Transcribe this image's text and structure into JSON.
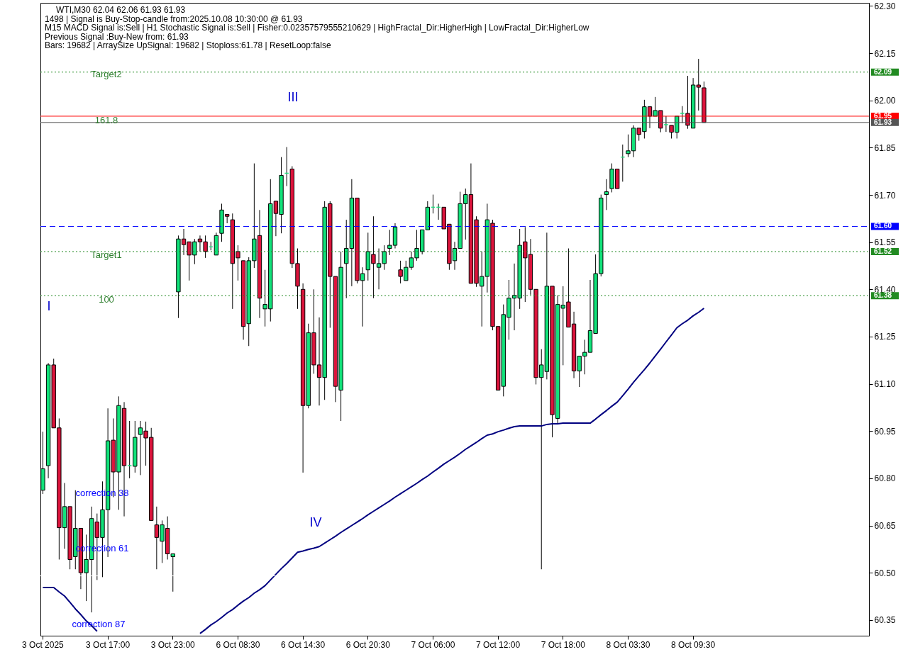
{
  "chart_data": {
    "type": "candlestick",
    "title": "WTI,M30  62.04 62.06 61.93 61.93",
    "categories": [
      "3 Oct 2025",
      null,
      null,
      null,
      null,
      null,
      null,
      null,
      null,
      null,
      null,
      null,
      "3 Oct 17:00",
      null,
      null,
      null,
      null,
      null,
      null,
      null,
      null,
      null,
      null,
      null,
      "3 Oct 23:00",
      null,
      null,
      null,
      null,
      null,
      null,
      null,
      null,
      null,
      null,
      null,
      "6 Oct 08:30",
      null,
      null,
      null,
      null,
      null,
      null,
      null,
      null,
      null,
      null,
      null,
      "6 Oct 14:30",
      null,
      null,
      null,
      null,
      null,
      null,
      null,
      null,
      null,
      null,
      null,
      "6 Oct 20:30",
      null,
      null,
      null,
      null,
      null,
      null,
      null,
      null,
      null,
      null,
      null,
      "7 Oct 06:00",
      null,
      null,
      null,
      null,
      null,
      null,
      null,
      null,
      null,
      null,
      null,
      "7 Oct 12:00",
      null,
      null,
      null,
      null,
      null,
      null,
      null,
      null,
      null,
      null,
      null,
      "7 Oct 18:00",
      null,
      null,
      null,
      null,
      null,
      null,
      null,
      null,
      null,
      null,
      null,
      "8 Oct 03:30",
      null,
      null,
      null,
      null,
      null,
      null,
      null,
      null,
      null,
      null,
      null,
      "8 Oct 09:30",
      null,
      null,
      null,
      null,
      null,
      null,
      null,
      null,
      null,
      null,
      null,
      null,
      null,
      null,
      null,
      null,
      null,
      null,
      null,
      null,
      null,
      null,
      null,
      null,
      null,
      null,
      null,
      null,
      null,
      null,
      null,
      null
    ],
    "ohlc": [
      [
        60.762,
        60.948,
        60.75,
        60.83
      ],
      [
        60.84,
        61.166,
        60.8,
        61.16
      ],
      [
        61.16,
        61.18,
        60.96,
        60.96
      ],
      [
        60.96,
        60.99,
        60.542,
        60.643
      ],
      [
        60.643,
        60.785,
        60.576,
        60.71
      ],
      [
        60.71,
        60.71,
        60.511,
        60.542
      ],
      [
        60.551,
        60.762,
        60.511,
        60.641
      ],
      [
        60.641,
        60.641,
        60.448,
        60.5
      ],
      [
        60.5,
        60.621,
        60.41,
        60.542
      ],
      [
        60.542,
        60.71,
        60.374,
        60.672
      ],
      [
        60.661,
        60.688,
        60.477,
        60.612
      ],
      [
        60.612,
        60.79,
        60.486,
        60.7
      ],
      [
        60.7,
        61.022,
        60.55,
        60.919
      ],
      [
        60.921,
        60.99,
        60.74,
        60.82
      ],
      [
        60.82,
        61.06,
        60.7,
        61.031
      ],
      [
        61.022,
        61.042,
        60.679,
        60.84
      ],
      [
        60.84,
        60.982,
        60.8,
        60.84
      ],
      [
        60.838,
        60.982,
        60.818,
        60.93
      ],
      [
        60.939,
        60.982,
        60.81,
        60.96
      ],
      [
        60.95,
        60.98,
        60.84,
        60.928
      ],
      [
        60.93,
        60.96,
        60.666,
        60.666
      ],
      [
        60.652,
        60.71,
        60.511,
        60.612
      ],
      [
        60.6,
        60.666,
        60.531,
        60.652
      ],
      [
        60.641,
        60.679,
        60.542,
        60.56
      ],
      [
        60.551,
        60.56,
        60.44,
        60.56
      ],
      [
        61.392,
        61.571,
        61.309,
        61.56
      ],
      [
        61.56,
        61.592,
        61.509,
        61.542
      ],
      [
        61.551,
        61.551,
        61.428,
        61.509
      ],
      [
        61.509,
        61.56,
        61.48,
        61.551
      ],
      [
        61.56,
        61.571,
        61.52,
        61.551
      ],
      [
        61.551,
        61.571,
        61.5,
        61.52
      ],
      [
        61.535,
        61.551,
        61.524,
        61.535
      ],
      [
        61.509,
        61.58,
        61.509,
        61.571
      ],
      [
        61.578,
        61.672,
        61.551,
        61.652
      ],
      [
        61.638,
        61.638,
        61.61,
        61.632
      ],
      [
        61.621,
        61.641,
        61.338,
        61.482
      ],
      [
        61.52,
        61.54,
        61.428,
        61.5
      ],
      [
        61.491,
        61.491,
        61.24,
        61.282
      ],
      [
        61.291,
        61.502,
        61.22,
        61.491
      ],
      [
        61.491,
        61.8,
        61.468,
        61.56
      ],
      [
        61.571,
        61.652,
        61.309,
        61.372
      ],
      [
        61.338,
        61.462,
        61.282,
        61.352
      ],
      [
        61.338,
        61.75,
        61.298,
        61.672
      ],
      [
        61.68,
        61.68,
        61.569,
        61.641
      ],
      [
        61.638,
        61.82,
        61.578,
        61.762
      ],
      [
        61.769,
        61.852,
        61.728,
        61.769
      ],
      [
        61.782,
        61.791,
        61.468,
        61.482
      ],
      [
        61.482,
        61.53,
        61.338,
        61.41
      ],
      [
        61.4,
        61.419,
        60.818,
        61.031
      ],
      [
        61.031,
        61.291,
        61.022,
        61.262
      ],
      [
        61.262,
        61.4,
        61.132,
        61.16
      ],
      [
        61.16,
        61.311,
        61.031,
        61.12
      ],
      [
        61.12,
        61.68,
        61.049,
        61.661
      ],
      [
        61.672,
        61.68,
        61.278,
        61.441
      ],
      [
        61.441,
        61.441,
        61.042,
        61.092
      ],
      [
        61.08,
        61.52,
        60.982,
        61.47
      ],
      [
        61.482,
        61.621,
        61.372,
        61.53
      ],
      [
        61.53,
        61.75,
        61.41,
        61.69
      ],
      [
        61.69,
        61.69,
        61.419,
        61.428
      ],
      [
        61.428,
        61.47,
        61.282,
        61.45
      ],
      [
        61.462,
        61.58,
        61.428,
        61.52
      ],
      [
        61.511,
        61.632,
        61.372,
        61.482
      ],
      [
        61.47,
        61.53,
        61.4,
        61.482
      ],
      [
        61.482,
        61.54,
        61.462,
        61.52
      ],
      [
        61.53,
        61.589,
        61.509,
        61.54
      ],
      [
        61.54,
        61.61,
        61.53,
        61.598
      ],
      [
        61.462,
        61.491,
        61.419,
        61.441
      ],
      [
        61.428,
        61.491,
        61.428,
        61.47
      ],
      [
        61.47,
        61.52,
        61.462,
        61.5
      ],
      [
        61.5,
        61.589,
        61.491,
        61.53
      ],
      [
        61.52,
        61.589,
        61.511,
        61.589
      ],
      [
        61.589,
        61.68,
        61.589,
        61.661
      ],
      [
        61.661,
        61.701,
        61.641,
        61.661
      ],
      [
        61.661,
        61.672,
        61.621,
        61.661
      ],
      [
        61.661,
        61.661,
        61.592,
        61.592
      ],
      [
        61.607,
        61.607,
        61.462,
        61.482
      ],
      [
        61.491,
        61.551,
        61.462,
        61.53
      ],
      [
        61.53,
        61.71,
        61.53,
        61.672
      ],
      [
        61.672,
        61.72,
        61.558,
        61.701
      ],
      [
        61.701,
        61.8,
        61.419,
        61.419
      ],
      [
        61.621,
        61.632,
        61.408,
        61.419
      ],
      [
        61.41,
        61.52,
        61.282,
        61.441
      ],
      [
        61.441,
        61.672,
        61.39,
        61.621
      ],
      [
        61.61,
        61.621,
        61.27,
        61.282
      ],
      [
        61.282,
        61.282,
        61.08,
        61.08
      ],
      [
        61.092,
        61.352,
        61.06,
        61.32
      ],
      [
        61.311,
        61.43,
        61.24,
        61.372
      ],
      [
        61.372,
        61.482,
        61.27,
        61.381
      ],
      [
        61.372,
        61.592,
        61.338,
        61.54
      ],
      [
        61.551,
        61.598,
        61.36,
        61.5
      ],
      [
        61.511,
        61.56,
        61.383,
        61.4
      ],
      [
        61.4,
        61.4,
        61.098,
        61.12
      ],
      [
        61.12,
        61.21,
        60.511,
        61.16
      ],
      [
        61.139,
        61.58,
        61.114,
        61.41
      ],
      [
        61.41,
        61.41,
        60.93,
        61.002
      ],
      [
        60.99,
        61.381,
        60.975,
        61.352
      ],
      [
        61.34,
        61.41,
        61.159,
        61.35
      ],
      [
        61.36,
        61.53,
        61.28,
        61.28
      ],
      [
        61.29,
        61.329,
        61.118,
        61.141
      ],
      [
        61.141,
        61.188,
        61.09,
        61.188
      ],
      [
        61.188,
        61.24,
        61.13,
        61.2
      ],
      [
        61.2,
        61.43,
        61.2,
        61.269
      ],
      [
        61.26,
        61.511,
        61.26,
        61.45
      ],
      [
        61.45,
        61.701,
        61.441,
        61.69
      ],
      [
        61.701,
        61.75,
        61.652,
        61.71
      ],
      [
        61.72,
        61.8,
        61.708,
        61.782
      ],
      [
        61.782,
        61.782,
        61.72,
        61.72
      ],
      [
        61.82,
        61.86,
        61.742,
        61.82
      ],
      [
        61.831,
        61.892,
        61.82,
        61.84
      ],
      [
        61.84,
        61.921,
        61.82,
        61.912
      ],
      [
        61.912,
        61.912,
        61.872,
        61.892
      ],
      [
        61.901,
        62.002,
        61.879,
        61.98
      ],
      [
        61.98,
        61.98,
        61.912,
        61.95
      ],
      [
        61.95,
        62.011,
        61.95,
        61.968
      ],
      [
        61.968,
        61.968,
        61.899,
        61.912
      ],
      [
        61.923,
        61.95,
        61.9,
        61.923
      ],
      [
        61.921,
        61.921,
        61.879,
        61.899
      ],
      [
        61.899,
        61.95,
        61.879,
        61.95
      ],
      [
        61.959,
        61.982,
        61.928,
        61.959
      ],
      [
        61.959,
        62.078,
        61.91,
        61.921
      ],
      [
        61.912,
        62.071,
        61.912,
        62.049
      ],
      [
        62.049,
        62.132,
        61.968,
        62.042
      ],
      [
        62.04,
        62.06,
        61.93,
        61.93
      ],
      null,
      null,
      null,
      null,
      null,
      null,
      null,
      null,
      null,
      null,
      null,
      null,
      null,
      null,
      null,
      null,
      null,
      null,
      null,
      null,
      null,
      null,
      null,
      null,
      null,
      null,
      null,
      null,
      null,
      null
    ],
    "colors": [
      "#12e27a",
      "#12e27a",
      "#dc143c",
      "#dc143c",
      "#12e27a",
      "#dc143c",
      "#12e27a",
      "#dc143c",
      "#12e27a",
      "#12e27a",
      "#dc143c",
      "#12e27a",
      "#12e27a",
      "#dc143c",
      "#12e27a",
      "#dc143c",
      "#12e27a",
      "#12e27a",
      "#12e27a",
      "#dc143c",
      "#dc143c",
      "#dc143c",
      "#12e27a",
      "#dc143c",
      "#12e27a",
      "#12e27a",
      "#dc143c",
      "#dc143c",
      "#12e27a",
      "#dc143c",
      "#dc143c",
      "#12e27a",
      "#12e27a",
      "#12e27a",
      "#dc143c",
      "#dc143c",
      "#dc143c",
      "#dc143c",
      "#12e27a",
      "#12e27a",
      "#dc143c",
      "#12e27a",
      "#12e27a",
      "#dc143c",
      "#12e27a",
      "#12e27a",
      "#dc143c",
      "#dc143c",
      "#dc143c",
      "#12e27a",
      "#dc143c",
      "#dc143c",
      "#12e27a",
      "#dc143c",
      "#dc143c",
      "#12e27a",
      "#12e27a",
      "#12e27a",
      "#dc143c",
      "#12e27a",
      "#12e27a",
      "#dc143c",
      "#12e27a",
      "#12e27a",
      "#12e27a",
      "#12e27a",
      "#dc143c",
      "#12e27a",
      "#12e27a",
      "#12e27a",
      "#12e27a",
      "#12e27a",
      "#12e27a",
      "#12e27a",
      "#dc143c",
      "#dc143c",
      "#12e27a",
      "#12e27a",
      "#12e27a",
      "#dc143c",
      "#dc143c",
      "#12e27a",
      "#12e27a",
      "#dc143c",
      "#dc143c",
      "#12e27a",
      "#12e27a",
      "#12e27a",
      "#12e27a",
      "#dc143c",
      "#dc143c",
      "#dc143c",
      "#12e27a",
      "#12e27a",
      "#dc143c",
      "#12e27a",
      "#12e27a",
      "#dc143c",
      "#dc143c",
      "#12e27a",
      "#12e27a",
      "#12e27a",
      "#12e27a",
      "#12e27a",
      "#12e27a",
      "#12e27a",
      "#dc143c",
      "#12e27a",
      "#12e27a",
      "#12e27a",
      "#dc143c",
      "#12e27a",
      "#dc143c",
      "#12e27a",
      "#dc143c",
      "#12e27a",
      "#dc143c",
      "#12e27a",
      "#12e27a",
      "#dc143c",
      "#12e27a",
      "#dc143c",
      "#dc143c",
      null,
      null,
      null,
      null,
      null,
      null,
      null,
      null,
      null,
      null,
      null,
      null,
      null,
      null,
      null,
      null,
      null,
      null,
      null,
      null,
      null,
      null,
      null,
      null,
      null,
      null,
      null,
      null,
      null,
      null
    ],
    "series": [
      {
        "type": "line",
        "color": "#000080",
        "values": [
          60.453,
          60.453,
          60.453,
          60.439,
          60.426,
          60.406,
          60.385,
          60.367,
          60.347,
          60.332,
          60.314,
          null,
          null,
          null,
          null,
          null,
          null,
          null,
          null,
          null,
          null,
          null,
          null,
          null,
          null,
          null,
          null,
          null,
          null,
          60.307,
          60.32,
          60.334,
          60.345,
          60.358,
          60.372,
          60.383,
          60.397,
          60.41,
          60.421,
          60.435,
          60.446,
          60.459,
          60.477,
          60.495,
          60.513,
          60.529,
          60.547,
          60.565,
          60.569,
          60.574,
          60.578,
          60.583,
          60.594,
          60.605,
          60.616,
          60.628,
          60.639,
          60.65,
          60.661,
          60.672,
          60.684,
          60.695,
          60.706,
          60.717,
          60.728,
          60.74,
          60.751,
          60.762,
          60.773,
          60.784,
          60.796,
          60.807,
          60.82,
          60.832,
          60.845,
          60.856,
          60.867,
          60.879,
          60.892,
          60.903,
          60.914,
          60.926,
          60.937,
          60.941,
          60.948,
          60.953,
          60.959,
          60.964,
          60.966,
          60.966,
          60.966,
          60.966,
          60.966,
          60.971,
          60.973,
          60.973,
          60.975,
          60.975,
          60.975,
          60.975,
          60.975,
          60.975,
          60.988,
          61.002,
          61.015,
          61.029,
          61.042,
          61.062,
          61.083,
          61.105,
          61.125,
          61.145,
          61.166,
          61.188,
          61.21,
          61.233,
          61.255,
          61.278,
          61.291,
          61.302,
          61.316,
          61.327,
          61.34,
          null,
          null,
          null,
          null,
          null,
          null,
          null,
          null,
          null,
          null,
          null,
          null,
          null,
          null,
          null,
          null,
          null,
          null,
          null,
          null,
          null,
          null,
          null,
          null,
          null,
          null,
          null,
          null,
          null,
          null
        ]
      }
    ],
    "ylim": [
      60.3,
      62.31
    ],
    "yticks": [
      {
        "value": 62.3,
        "label": "62.30"
      },
      62.15,
      {
        "value": 62,
        "label": "62.00"
      },
      61.85,
      {
        "value": 61.7,
        "label": "61.70"
      },
      61.55,
      {
        "value": 61.4,
        "label": "61.40"
      },
      61.25,
      {
        "value": 61.1,
        "label": "61.10"
      },
      60.95,
      {
        "value": 60.8,
        "label": "60.80"
      },
      60.65,
      {
        "value": 60.5,
        "label": "60.50"
      },
      60.35
    ],
    "ref_lines": [
      {
        "axis": "y",
        "value": 62.09,
        "label": "62.09",
        "color": "#228b22",
        "line_style": "dotted"
      },
      {
        "axis": "y",
        "value": 61.95,
        "label": "61.95",
        "color": "#ff0000",
        "line_style": "solid"
      },
      {
        "axis": "y",
        "value": 61.93,
        "label": "61.93",
        "color": "#555555",
        "line_style": "solid"
      },
      {
        "axis": "y",
        "value": 61.6,
        "label": "61.60",
        "color": "#0000ff",
        "line_style": "dashed"
      },
      {
        "axis": "y",
        "value": 61.52,
        "label": "61.52",
        "color": "#228b22",
        "line_style": "dotted"
      },
      {
        "axis": "y",
        "value": 61.38,
        "label": "61.38",
        "color": "#228b22",
        "line_style": "dotted"
      },
      {
        "axis": "y",
        "value": 60.49,
        "color": "#ffffff",
        "line_style": "dashed"
      }
    ],
    "annotations": [
      "1498 | Signal is Buy-Stop-candle from:2025.10.08 10:30:00 @ 61.93",
      "M15 MACD Signal is:Sell | H1 Stochastic Signal is:Sell | Fisher:0.02357579555210629 | HighFractal_Dir:HigherHigh | LowFractal_Dir:HigherLow",
      "Previous Signal :Buy-New from: 61.93",
      "Bars: 19682 | ArraySize UpSignal: 19682 | Stoploss:61.78 | ResetLoop:false",
      "Target2",
      "161.8",
      "Target1",
      "100",
      "I",
      "III",
      "IV",
      "correction 38",
      "correction 61",
      "correction 87"
    ]
  }
}
